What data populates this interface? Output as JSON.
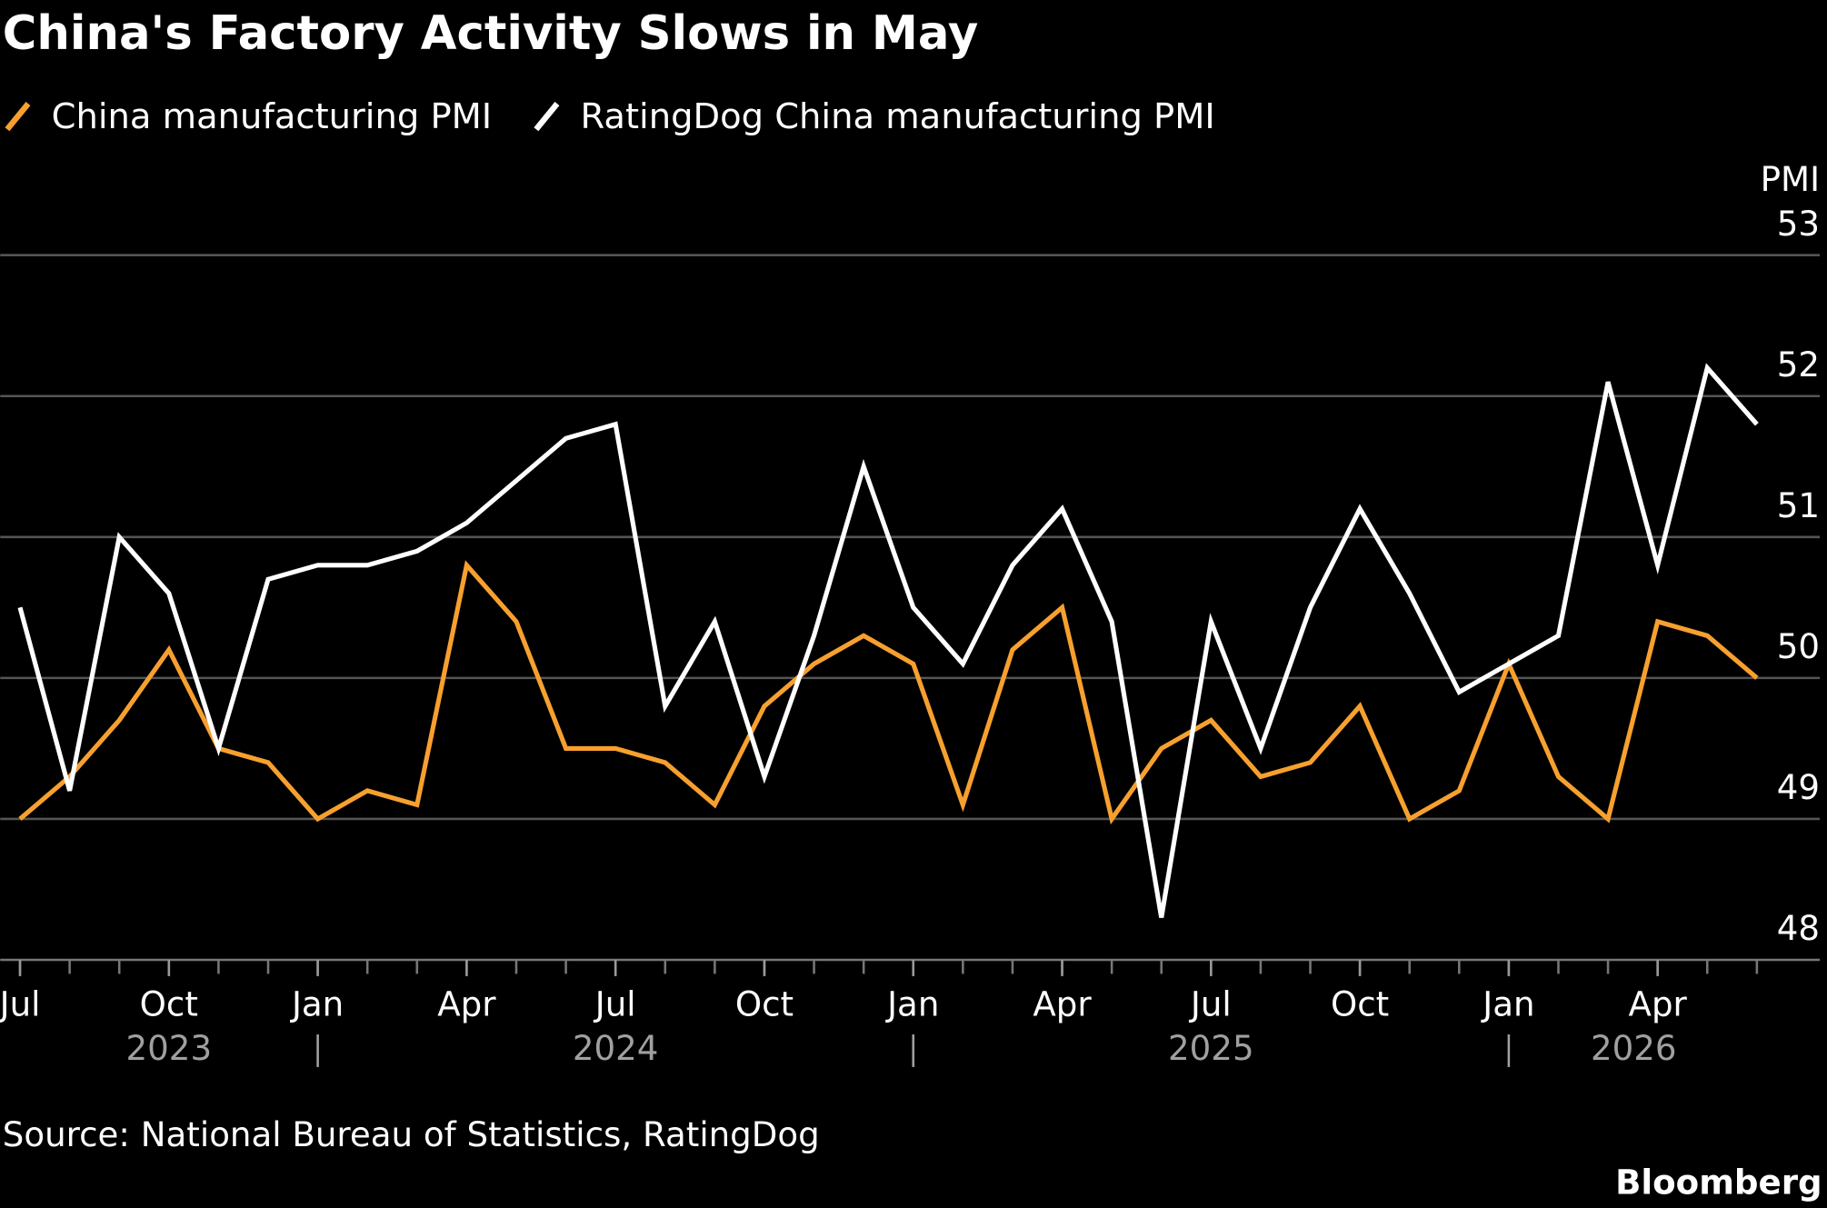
{
  "chart_data": {
    "type": "line",
    "title": "China's Factory Activity Slows in May",
    "ylabel": "PMI",
    "source": "Source: National Bureau of Statistics, RatingDog",
    "brand": "Bloomberg",
    "x": [
      "2023-07",
      "2023-08",
      "2023-09",
      "2023-10",
      "2023-11",
      "2023-12",
      "2024-01",
      "2024-02",
      "2024-03",
      "2024-04",
      "2024-05",
      "2024-06",
      "2024-07",
      "2024-08",
      "2024-09",
      "2024-10",
      "2024-11",
      "2024-12",
      "2025-01",
      "2025-02",
      "2025-03",
      "2025-04",
      "2025-05",
      "2025-06",
      "2025-07",
      "2025-08",
      "2025-09",
      "2025-10",
      "2025-11",
      "2025-12",
      "2026-01",
      "2026-02",
      "2026-03",
      "2026-04",
      "2026-05",
      "2026-06"
    ],
    "series": [
      {
        "name": "China manufacturing PMI",
        "color": "#f7a02f",
        "values": [
          49.0,
          49.3,
          49.7,
          50.2,
          49.5,
          49.4,
          49.0,
          49.2,
          49.1,
          50.8,
          50.4,
          49.5,
          49.5,
          49.4,
          49.1,
          49.8,
          50.1,
          50.3,
          50.1,
          49.1,
          50.2,
          50.5,
          49.0,
          49.5,
          49.7,
          49.3,
          49.4,
          49.8,
          49.0,
          49.2,
          50.1,
          49.3,
          49.0,
          50.4,
          50.3,
          50.0
        ]
      },
      {
        "name": "RatingDog China manufacturing PMI",
        "color": "#ffffff",
        "values": [
          50.5,
          49.2,
          51.0,
          50.6,
          49.5,
          50.7,
          50.8,
          50.8,
          50.9,
          51.1,
          51.4,
          51.7,
          51.8,
          49.8,
          50.4,
          49.3,
          50.3,
          51.5,
          50.5,
          50.1,
          50.8,
          51.2,
          50.4,
          48.3,
          50.4,
          49.5,
          50.5,
          51.2,
          50.6,
          49.9,
          50.1,
          50.3,
          52.1,
          50.8,
          52.2,
          51.8
        ]
      }
    ],
    "ylim": [
      48,
      53
    ],
    "yticks": [
      48,
      49,
      50,
      51,
      52,
      53
    ],
    "xticks": [
      {
        "value": "2023-07",
        "label": "Jul"
      },
      {
        "value": "2023-10",
        "label": "Oct"
      },
      {
        "value": "2024-01",
        "label": "Jan"
      },
      {
        "value": "2024-04",
        "label": "Apr"
      },
      {
        "value": "2024-07",
        "label": "Jul"
      },
      {
        "value": "2024-10",
        "label": "Oct"
      },
      {
        "value": "2025-01",
        "label": "Jan"
      },
      {
        "value": "2025-04",
        "label": "Apr"
      },
      {
        "value": "2025-07",
        "label": "Jul"
      },
      {
        "value": "2025-10",
        "label": "Oct"
      },
      {
        "value": "2026-01",
        "label": "Jan"
      },
      {
        "value": "2026-04",
        "label": "Apr"
      }
    ],
    "year_labels": [
      {
        "value": "2023-10",
        "label": "2023"
      },
      {
        "value": "2024-07",
        "label": "2024"
      },
      {
        "value": "2025-07",
        "label": "2025"
      },
      {
        "value": "2026-03",
        "label": "2026"
      }
    ],
    "grid": true
  }
}
